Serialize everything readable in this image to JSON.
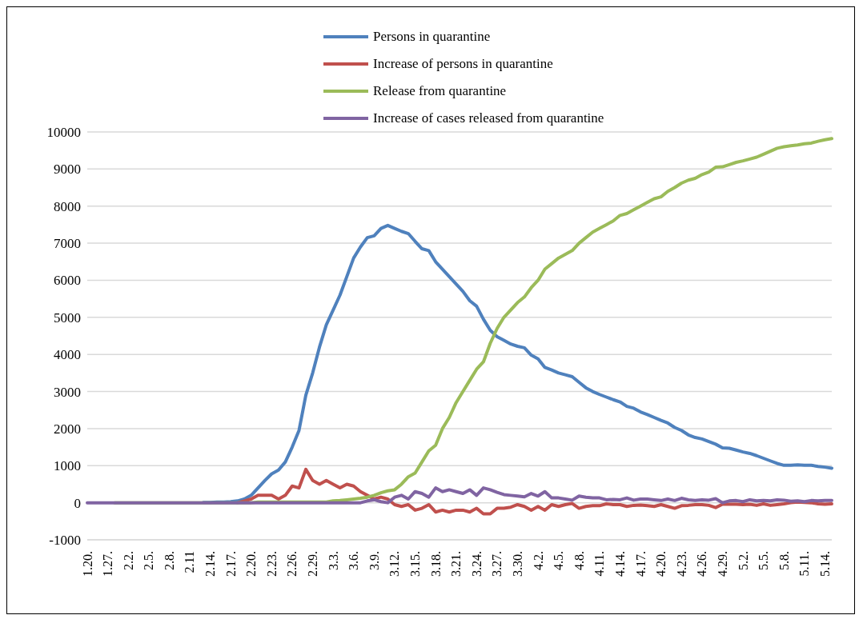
{
  "chart_data": {
    "type": "line",
    "categories": [
      "1.20.",
      null,
      null,
      "1.27.",
      null,
      null,
      "2.2.",
      null,
      null,
      "2.5.",
      null,
      null,
      "2.8.",
      null,
      null,
      "2.11",
      null,
      null,
      "2.14.",
      null,
      null,
      "2.17.",
      null,
      null,
      "2.20.",
      null,
      null,
      "2.23.",
      null,
      null,
      "2.26.",
      null,
      null,
      "2.29.",
      null,
      null,
      "3.3.",
      null,
      null,
      "3.6.",
      null,
      null,
      "3.9.",
      null,
      null,
      "3.12.",
      null,
      null,
      "3.15.",
      null,
      null,
      "3.18.",
      null,
      null,
      "3.21.",
      null,
      null,
      "3.24.",
      null,
      null,
      "3.27.",
      null,
      null,
      "3.30.",
      null,
      null,
      "4.2.",
      null,
      null,
      "4.5.",
      null,
      null,
      "4.8.",
      null,
      null,
      "4.11.",
      null,
      null,
      "4.14.",
      null,
      null,
      "4.17.",
      null,
      null,
      "4.20.",
      null,
      null,
      "4.23.",
      null,
      null,
      "4.26.",
      null,
      null,
      "4.29.",
      null,
      null,
      "5.2.",
      null,
      null,
      "5.5.",
      null,
      null,
      "5.8.",
      null,
      null,
      "5.11.",
      null,
      null,
      "5.14.",
      null
    ],
    "series": [
      {
        "name": "Persons in quarantine",
        "color": "#4f81bd",
        "values": [
          null,
          null,
          null,
          null,
          null,
          null,
          null,
          null,
          null,
          null,
          null,
          null,
          null,
          null,
          null,
          null,
          null,
          10,
          10,
          20,
          20,
          30,
          50,
          100,
          200,
          400,
          600,
          780,
          880,
          1100,
          1500,
          1950,
          2900,
          3500,
          4200,
          4800,
          5200,
          5600,
          6100,
          6600,
          6900,
          7150,
          7200,
          7400,
          7480,
          7400,
          7320,
          7260,
          7050,
          6850,
          6800,
          6500,
          6300,
          6100,
          5900,
          5700,
          5450,
          5300,
          4950,
          4650,
          4480,
          4380,
          4280,
          4220,
          4180,
          3980,
          3880,
          3650,
          3580,
          3500,
          3450,
          3400,
          3250,
          3100,
          3000,
          2920,
          2850,
          2780,
          2720,
          2600,
          2550,
          2450,
          2380,
          2300,
          2220,
          2150,
          2030,
          1950,
          1830,
          1760,
          1720,
          1650,
          1580,
          1480,
          1470,
          1420,
          1370,
          1330,
          1270,
          1200,
          1130,
          1060,
          1010,
          1010,
          1020,
          1010,
          1010,
          980,
          960,
          930
        ]
      },
      {
        "name": "Increase of persons in quarantine",
        "color": "#c0504d",
        "values": [
          null,
          null,
          null,
          null,
          null,
          null,
          null,
          null,
          null,
          null,
          null,
          null,
          null,
          null,
          null,
          null,
          null,
          null,
          null,
          null,
          null,
          null,
          0,
          50,
          100,
          200,
          200,
          200,
          100,
          200,
          450,
          400,
          900,
          600,
          500,
          600,
          500,
          400,
          500,
          450,
          300,
          200,
          100,
          150,
          100,
          -50,
          -100,
          -50,
          -200,
          -150,
          -50,
          -250,
          -200,
          -250,
          -200,
          -200,
          -250,
          -150,
          -300,
          -300,
          -150,
          -150,
          -120,
          -50,
          -100,
          -200,
          -100,
          -200,
          -50,
          -100,
          -50,
          -20,
          -150,
          -100,
          -80,
          -80,
          -30,
          -50,
          -50,
          -100,
          -70,
          -60,
          -80,
          -100,
          -50,
          -100,
          -150,
          -80,
          -70,
          -50,
          -50,
          -70,
          -130,
          -40,
          -40,
          -40,
          -50,
          -40,
          -70,
          -30,
          -70,
          -50,
          -30,
          0,
          20,
          10,
          0,
          -30,
          -40,
          -30
        ]
      },
      {
        "name": "Release from quarantine",
        "color": "#9bbb59",
        "values": [
          null,
          null,
          null,
          null,
          0,
          0,
          0,
          0,
          0,
          0,
          0,
          0,
          0,
          0,
          0,
          0,
          0,
          0,
          0,
          0,
          0,
          0,
          0,
          0,
          0,
          20,
          20,
          20,
          20,
          20,
          20,
          20,
          20,
          20,
          20,
          20,
          50,
          60,
          80,
          100,
          120,
          150,
          200,
          270,
          320,
          350,
          500,
          700,
          800,
          1100,
          1400,
          1550,
          2000,
          2300,
          2700,
          3000,
          3300,
          3600,
          3800,
          4300,
          4700,
          5000,
          5200,
          5400,
          5550,
          5800,
          6000,
          6300,
          6450,
          6600,
          6700,
          6800,
          7000,
          7150,
          7300,
          7400,
          7500,
          7600,
          7750,
          7800,
          7900,
          8000,
          8100,
          8200,
          8250,
          8400,
          8500,
          8620,
          8700,
          8750,
          8850,
          8920,
          9050,
          9060,
          9120,
          9180,
          9220,
          9270,
          9320,
          9400,
          9480,
          9560,
          9600,
          9630,
          9650,
          9680,
          9700,
          9750,
          9790,
          9820
        ]
      },
      {
        "name": "Increase of cases released from quarantine",
        "color": "#8064a2",
        "values": [
          0,
          0,
          0,
          0,
          0,
          0,
          0,
          0,
          0,
          0,
          0,
          0,
          0,
          0,
          0,
          0,
          0,
          0,
          0,
          0,
          0,
          0,
          0,
          0,
          0,
          0,
          0,
          0,
          0,
          0,
          0,
          0,
          0,
          0,
          0,
          0,
          0,
          0,
          0,
          0,
          0,
          50,
          80,
          30,
          0,
          150,
          200,
          100,
          300,
          250,
          150,
          400,
          300,
          350,
          300,
          250,
          350,
          200,
          400,
          350,
          280,
          220,
          200,
          180,
          160,
          250,
          180,
          300,
          130,
          130,
          100,
          70,
          180,
          150,
          130,
          130,
          80,
          90,
          80,
          130,
          70,
          100,
          100,
          80,
          60,
          100,
          60,
          120,
          80,
          60,
          80,
          70,
          110,
          0,
          50,
          60,
          30,
          80,
          50,
          60,
          50,
          80,
          70,
          40,
          50,
          30,
          60,
          50,
          60,
          60
        ]
      }
    ],
    "ylim": [
      -1000,
      10000
    ],
    "yticks": [
      -1000,
      0,
      1000,
      2000,
      3000,
      4000,
      5000,
      6000,
      7000,
      8000,
      9000,
      10000
    ],
    "grid": "y",
    "legend": "top",
    "marker": "none",
    "line_style": "solid"
  }
}
